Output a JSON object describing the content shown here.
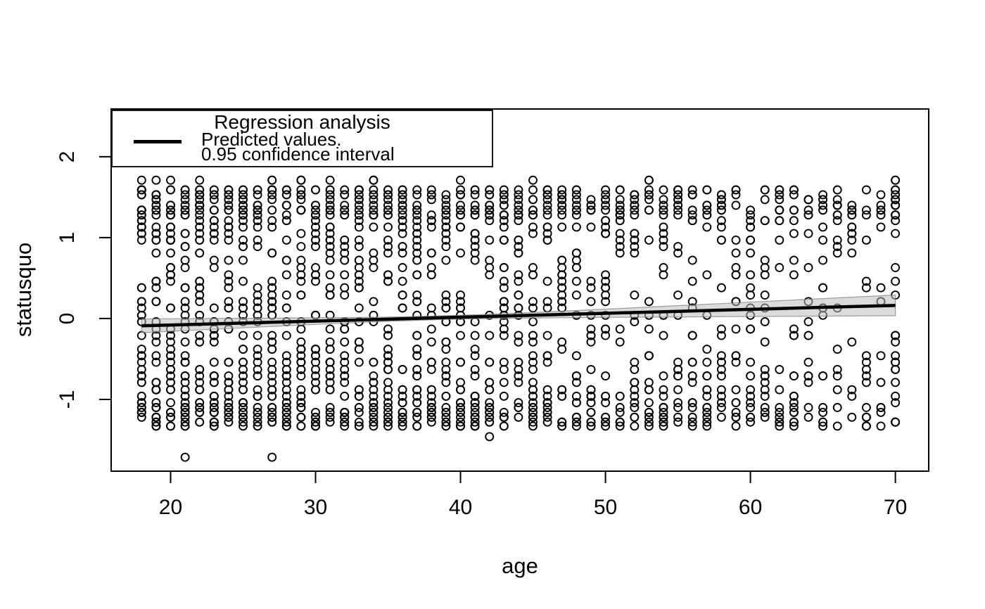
{
  "chart_data": {
    "type": "scatter",
    "title": "",
    "xlabel": "age",
    "ylabel": "statusquo",
    "xlim": [
      15.9,
      72.3
    ],
    "ylim": [
      -1.887,
      2.59
    ],
    "x_ticks": [
      20,
      30,
      40,
      50,
      60,
      70
    ],
    "y_ticks": [
      -1,
      0,
      1,
      2
    ],
    "grid": false,
    "legend": {
      "position": "topleft",
      "title": "Regression analysis",
      "items": [
        "Predicted values.",
        "0.95 confidence interval"
      ]
    },
    "regression": {
      "name": "Predicted values",
      "ages": [
        18,
        25,
        30,
        35,
        40,
        45,
        50,
        55,
        60,
        65,
        70
      ],
      "pred": [
        -0.09,
        -0.056,
        -0.032,
        -0.008,
        0.017,
        0.041,
        0.065,
        0.089,
        0.114,
        0.138,
        0.162
      ],
      "ci_upper": [
        -0.005,
        0.003,
        0.009,
        0.018,
        0.04,
        0.075,
        0.116,
        0.159,
        0.203,
        0.246,
        0.29
      ],
      "ci_lower": [
        -0.175,
        -0.115,
        -0.073,
        -0.034,
        -0.006,
        0.007,
        0.014,
        0.019,
        0.025,
        0.03,
        0.034
      ],
      "ci_level": 0.95
    },
    "scatter": {
      "description": "Open-circle points stacked in vertical columns at each integer age 18-70; statusquo values fall on discrete horizontal bands between -1.33 and 1.71, densest near the top (1.25 to 1.6) and bottom (-0.85 to -1.33).",
      "seed": 42,
      "age_start": 18,
      "counts_per_age": [
        55,
        52,
        55,
        50,
        54,
        48,
        46,
        50,
        44,
        48,
        45,
        47,
        46,
        45,
        42,
        46,
        40,
        44,
        41,
        45,
        38,
        42,
        44,
        38,
        36,
        39,
        34,
        38,
        33,
        36,
        32,
        30,
        32,
        28,
        30,
        26,
        29,
        25,
        26,
        24,
        26,
        22,
        25,
        22,
        20,
        23,
        18,
        21,
        18,
        16,
        18,
        15,
        40
      ],
      "band_values": [
        1.71,
        1.59,
        1.53,
        1.47,
        1.4,
        1.34,
        1.28,
        1.21,
        1.13,
        1.05,
        0.97,
        0.89,
        0.81,
        0.72,
        0.63,
        0.54,
        0.46,
        0.38,
        0.29,
        0.21,
        0.13,
        0.04,
        -0.04,
        -0.13,
        -0.21,
        -0.29,
        -0.38,
        -0.46,
        -0.54,
        -0.63,
        -0.71,
        -0.79,
        -0.88,
        -0.96,
        -1.04,
        -1.1,
        -1.16,
        -1.22,
        -1.28,
        -1.33
      ],
      "band_weights": [
        2,
        5,
        5,
        4,
        5,
        5,
        5,
        3,
        3,
        3,
        3,
        2,
        2,
        2,
        2,
        2,
        2,
        2,
        2,
        2,
        2,
        2,
        2,
        2,
        2,
        2,
        2,
        2,
        3,
        3,
        3,
        3,
        4,
        4,
        5,
        5,
        5,
        5,
        5,
        4
      ],
      "outlier_points": [
        [
          21,
          -1.715
        ],
        [
          27,
          -1.715
        ],
        [
          42,
          -1.46
        ]
      ]
    },
    "style": {
      "point_color": "#000000",
      "point_radius": 5.5,
      "point_stroke_width": 1.9,
      "line_color": "#000000",
      "line_width": 4.5,
      "band_fill": "#bebebe",
      "band_opacity": 0.55,
      "band_stroke": "#7a7a7a",
      "axis_color": "#000000",
      "background": "#ffffff"
    }
  }
}
